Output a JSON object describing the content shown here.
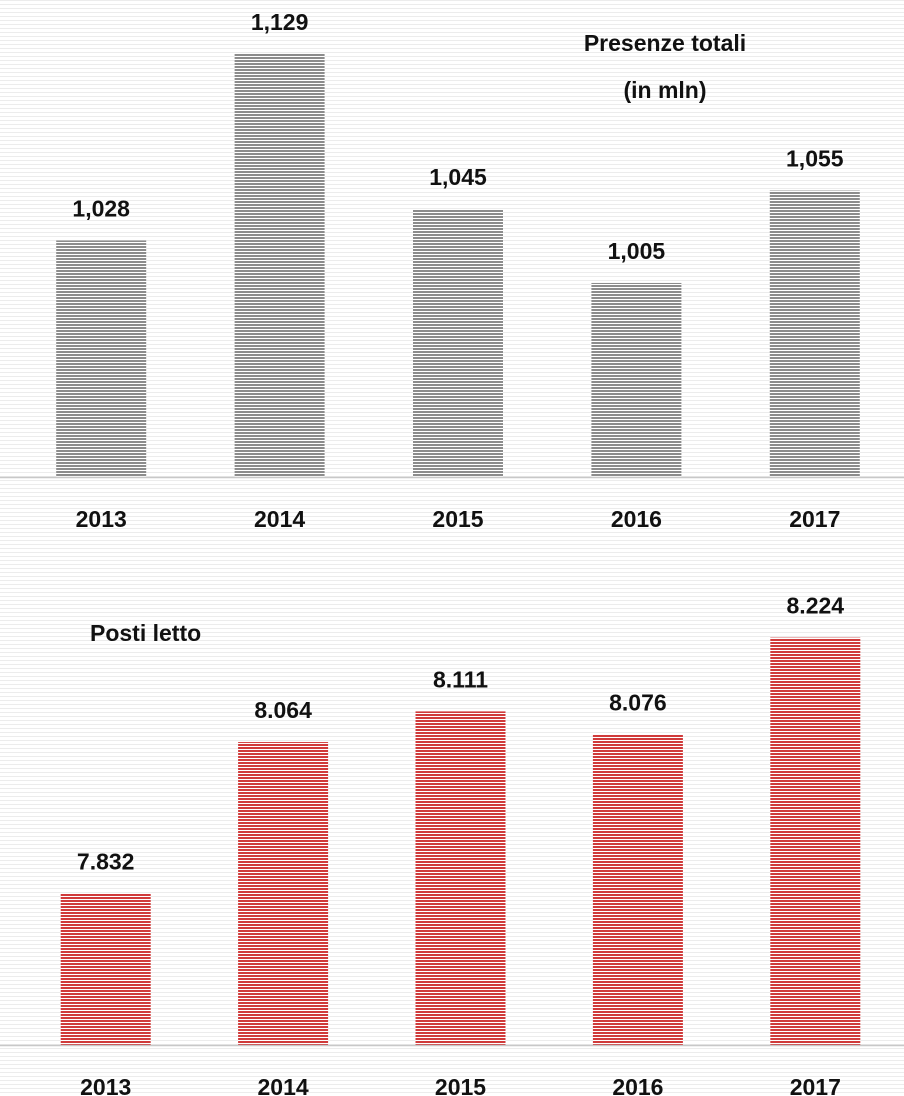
{
  "chart_data": [
    {
      "type": "bar",
      "title": [
        "Presenze totali",
        "(in mln)"
      ],
      "categories": [
        "2013",
        "2014",
        "2015",
        "2016",
        "2017"
      ],
      "values": [
        1.028,
        1.129,
        1.045,
        1.005,
        1.055
      ],
      "value_labels": [
        "1,028",
        "1,129",
        "1,045",
        "1,005",
        "1,055"
      ],
      "color": "#8c8c8c",
      "ylim": [
        0.9,
        1.15
      ]
    },
    {
      "type": "bar",
      "title": [
        "Posti letto"
      ],
      "categories": [
        "2013",
        "2014",
        "2015",
        "2016",
        "2017"
      ],
      "values": [
        7832,
        8064,
        8111,
        8076,
        8224
      ],
      "value_labels": [
        "7.832",
        "8.064",
        "8.111",
        "8.076",
        "8.224"
      ],
      "color": "#d03a3a",
      "ylim": [
        7600,
        8300
      ]
    }
  ]
}
